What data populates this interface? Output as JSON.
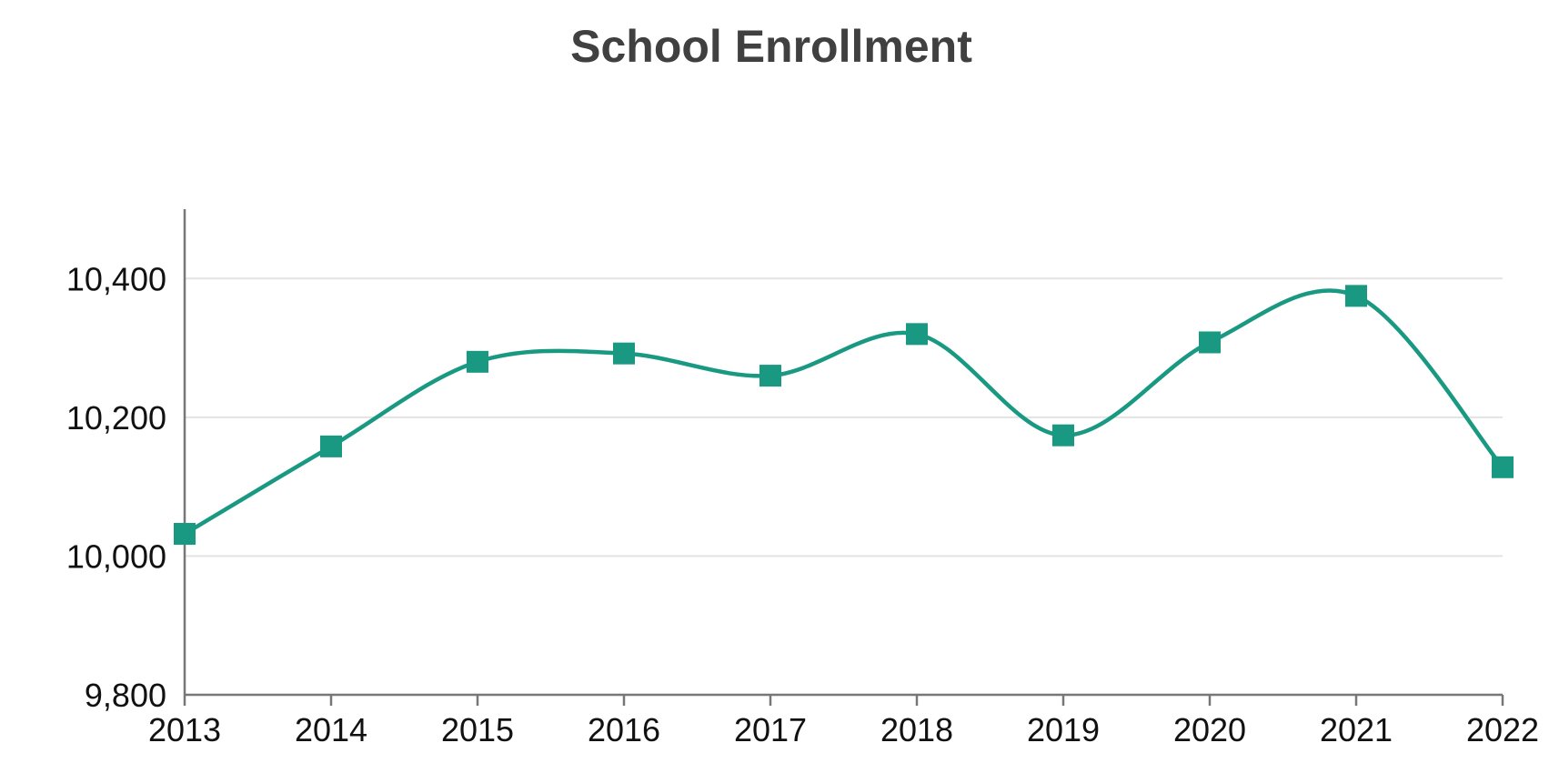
{
  "chart_data": {
    "type": "line",
    "title": "School Enrollment",
    "xlabel": "",
    "ylabel": "",
    "x": [
      "2013",
      "2014",
      "2015",
      "2016",
      "2017",
      "2018",
      "2019",
      "2020",
      "2021",
      "2022"
    ],
    "series": [
      {
        "values": [
          10032,
          10158,
          10280,
          10292,
          10260,
          10320,
          10174,
          10308,
          10375,
          10128
        ]
      }
    ],
    "ylim": [
      9800,
      10500
    ],
    "yticks": [
      9800,
      10000,
      10200,
      10400
    ],
    "ytick_labels": [
      "9,800",
      "10,000",
      "10,200",
      "10,400"
    ],
    "grid": "horizontal",
    "line_style": "smooth",
    "marker": "square",
    "color": "#1a9982"
  }
}
